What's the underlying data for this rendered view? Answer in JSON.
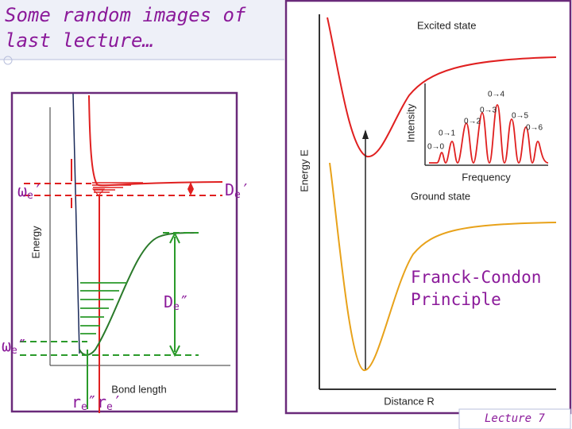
{
  "slide": {
    "title": "Some random images of last lecture…",
    "footer": "Lecture 7",
    "left_figure": {
      "axis_y": "Energy",
      "axis_x": "Bond length",
      "we_upper": {
        "symbol": "ω",
        "sub": "e",
        "mark": "′"
      },
      "we_lower": {
        "symbol": "ω",
        "sub": "e",
        "mark": "″"
      },
      "de_upper": {
        "symbol": "D",
        "sub": "e",
        "mark": "′"
      },
      "de_lower": {
        "symbol": "D",
        "sub": "e",
        "mark": "″"
      },
      "re_lower": {
        "symbol": "r",
        "sub": "e",
        "mark": "″"
      },
      "re_upper": {
        "symbol": "r",
        "sub": "e",
        "mark": "′"
      }
    },
    "right_figure": {
      "excited": "Excited state",
      "ground": "Ground state",
      "axis_y": "Energy E",
      "axis_x": "Distance R",
      "inset_y": "Intensity",
      "inset_x": "Frequency",
      "transitions": [
        "0→0",
        "0→1",
        "0→2",
        "0→3",
        "0→4",
        "0→5",
        "0→6"
      ],
      "caption": "Franck-Condon Principle"
    }
  }
}
